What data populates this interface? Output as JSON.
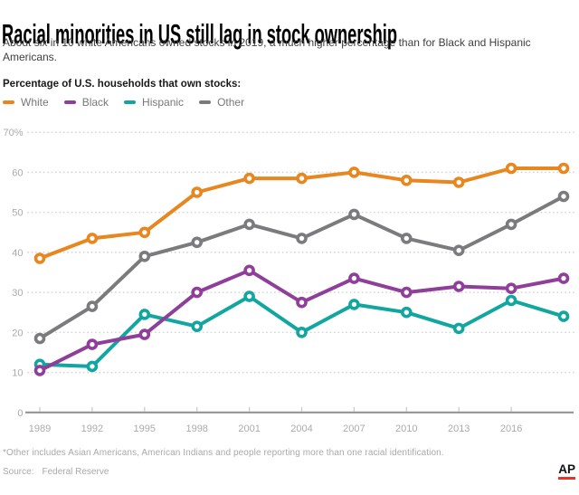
{
  "header": {
    "title": "Racial minorities in US still lag in stock ownership",
    "subtitle_line1": "About six in 10 white Americans owned stocks in 2019, a much higher percentage than for Black and Hispanic",
    "subtitle_line2": "Americans.",
    "chart_label": "Percentage of U.S. households that own stocks:"
  },
  "legend": [
    {
      "label": "White",
      "color": "#E8861F"
    },
    {
      "label": "Black",
      "color": "#8F3E99"
    },
    {
      "label": "Hispanic",
      "color": "#12A6A0"
    },
    {
      "label": "Other",
      "color": "#7B7B7D"
    }
  ],
  "chart_data": {
    "type": "line",
    "x": [
      1989,
      1992,
      1995,
      1998,
      2001,
      2004,
      2007,
      2010,
      2013,
      2016,
      2019
    ],
    "x_tick_labels": [
      "1989",
      "1992",
      "1995",
      "1998",
      "2001",
      "2004",
      "2007",
      "2010",
      "2013",
      "2016"
    ],
    "series": [
      {
        "name": "White",
        "color": "#E8861F",
        "values": [
          38.5,
          43.5,
          45,
          55,
          58.5,
          58.5,
          60,
          58,
          57.5,
          61,
          61
        ]
      },
      {
        "name": "Black",
        "color": "#8F3E99",
        "values": [
          10.5,
          17,
          19.5,
          30,
          35.5,
          27.5,
          33.5,
          30,
          31.5,
          31,
          33.5
        ]
      },
      {
        "name": "Hispanic",
        "color": "#12A6A0",
        "values": [
          12,
          11.5,
          24.5,
          21.5,
          29,
          20,
          27,
          25,
          21,
          28,
          24
        ]
      },
      {
        "name": "Other",
        "color": "#7B7B7D",
        "values": [
          18.5,
          26.5,
          39,
          42.5,
          47,
          43.5,
          49.5,
          43.5,
          40.5,
          47,
          54
        ]
      }
    ],
    "ylim": [
      0,
      70
    ],
    "y_ticks": [
      0,
      10,
      20,
      30,
      40,
      50,
      60,
      70
    ],
    "y_top_label": "70%",
    "grid": "dotted horizontal gridlines at every 10, solid baseline at 0",
    "legend_position": "top-left above plot",
    "colors": {
      "axis_text": "#ABABAD",
      "gridline": "#D6D6D8",
      "baseline": "#8E8E90",
      "tick": "#C6C6C8"
    }
  },
  "footer": {
    "footnote": "*Other includes Asian Americans, American Indians and people reporting more than one racial identification.",
    "source_label": "Source:",
    "source_value": "Federal Reserve",
    "ap_logo": "AP",
    "ap_red": "#EE3124"
  }
}
